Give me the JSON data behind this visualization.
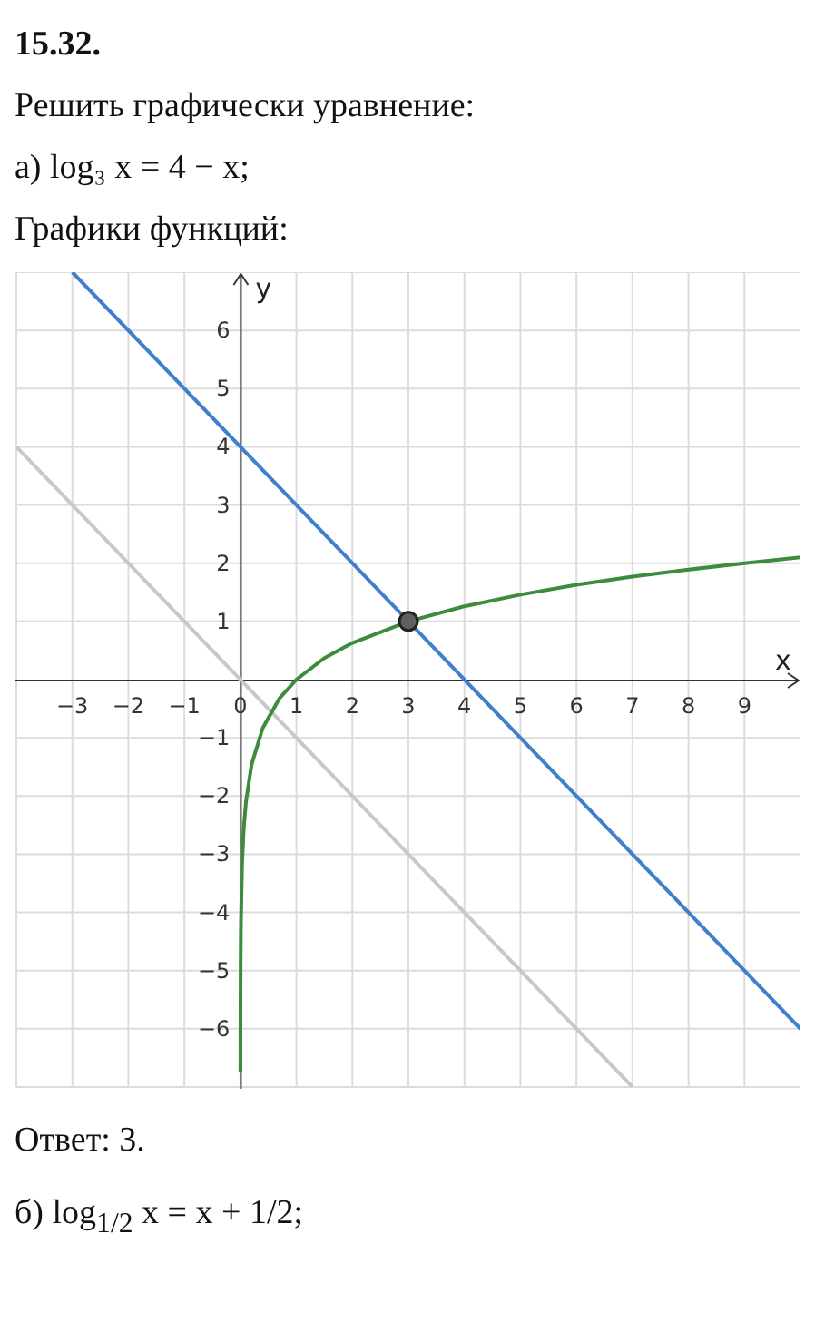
{
  "chart_data": {
    "type": "line",
    "title": "15.32.",
    "annotations": [
      "Решить графически уравнение:",
      "а) log₃ x = 4 − x;",
      "Графики функций:",
      "Ответ:  3.",
      "б) log$_{1/2}$ x = x + 1/2;"
    ],
    "xlabel": "x",
    "ylabel": "y",
    "xlim": [
      -4,
      10
    ],
    "ylim": [
      -7,
      7
    ],
    "xticks": [
      -3,
      -2,
      -1,
      0,
      1,
      2,
      3,
      4,
      5,
      6,
      7,
      8,
      9
    ],
    "yticks": [
      -6,
      -5,
      -4,
      -3,
      -2,
      -1,
      1,
      2,
      3,
      4,
      5,
      6
    ],
    "grid": true,
    "marker": "none",
    "line_style": "solid",
    "series": [
      {
        "color": "#c8c8c8",
        "x": [
          -4,
          7
        ],
        "values": [
          4,
          -7
        ]
      },
      {
        "color": "#3f7fcb",
        "x": [
          -3,
          10
        ],
        "values": [
          7,
          -6
        ]
      },
      {
        "color": "#3d8b3d",
        "x": [
          0.0006,
          0.002,
          0.005,
          0.01,
          0.03,
          0.06,
          0.1,
          0.2,
          0.4,
          0.7,
          1,
          1.5,
          2,
          3,
          4,
          5,
          6,
          7,
          8,
          9,
          10
        ],
        "values": [
          -6.75,
          -5.66,
          -4.82,
          -4.19,
          -3.19,
          -2.56,
          -2.1,
          -1.46,
          -0.83,
          -0.32,
          0,
          0.37,
          0.63,
          1,
          1.26,
          1.46,
          1.63,
          1.77,
          1.89,
          2,
          2.1
        ]
      },
      {
        "type": "scatter",
        "marker": "circle",
        "color": "#606060",
        "x": [
          3
        ],
        "values": [
          1
        ]
      }
    ]
  }
}
